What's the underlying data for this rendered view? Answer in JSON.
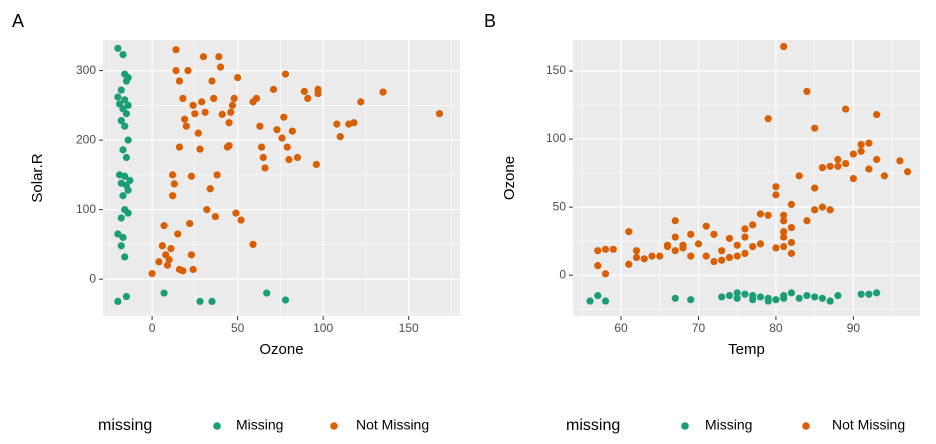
{
  "chart_data": [
    {
      "type": "scatter",
      "label": "A",
      "x_label": "Ozone",
      "y_label": "Solar.R",
      "legend_title": "missing",
      "xlim": [
        -28.7,
        180
      ],
      "ylim": [
        -53,
        344
      ],
      "xticks": [
        0,
        50,
        100,
        150
      ],
      "yticks": [
        0,
        100,
        200,
        300
      ],
      "xminor": [
        -25,
        25,
        75,
        125,
        175
      ],
      "yminor": [
        -50,
        50,
        150,
        250
      ],
      "grid": true,
      "series": [
        {
          "name": "Missing",
          "color": "#1b9e77",
          "x": [
            -20,
            -17,
            -16,
            -14,
            -15,
            -18,
            -20,
            -16,
            -19,
            -14,
            -17,
            -15,
            -18,
            -16,
            -14,
            -17,
            -15,
            -19,
            -16,
            -13,
            -18,
            -15,
            -14,
            -17,
            -16,
            -14,
            -18,
            -20,
            -17,
            -18,
            -16,
            -20,
            -15,
            7,
            28,
            35,
            67,
            78
          ],
          "values": [
            332,
            323,
            295,
            290,
            285,
            272,
            262,
            258,
            252,
            250,
            245,
            238,
            228,
            220,
            200,
            186,
            175,
            150,
            148,
            142,
            138,
            135,
            128,
            120,
            100,
            95,
            88,
            65,
            60,
            48,
            32,
            -32,
            -25,
            -20,
            -32,
            -32,
            -20,
            -30
          ]
        },
        {
          "name": "Not Missing",
          "color": "#d95f02",
          "x": [
            0,
            4,
            6,
            7,
            8,
            9,
            10,
            11,
            12,
            12,
            13,
            14,
            14,
            16,
            15,
            16,
            16,
            18,
            18,
            19,
            20,
            21,
            22,
            23,
            23,
            24,
            24,
            25,
            27,
            28,
            29,
            30,
            31,
            32,
            34,
            35,
            36,
            37,
            38,
            39,
            40,
            41,
            44,
            45,
            45,
            46,
            47,
            48,
            49,
            50,
            52,
            59,
            59,
            61,
            63,
            64,
            65,
            66,
            71,
            73,
            76,
            77,
            78,
            79,
            80,
            82,
            85,
            89,
            91,
            96,
            97,
            97,
            108,
            110,
            115,
            118,
            122,
            135,
            168
          ],
          "values": [
            8,
            25,
            48,
            77,
            35,
            20,
            28,
            44,
            120,
            150,
            137,
            330,
            300,
            285,
            65,
            190,
            14,
            12,
            260,
            230,
            220,
            300,
            80,
            148,
            35,
            250,
            14,
            238,
            210,
            187,
            255,
            320,
            240,
            100,
            130,
            285,
            260,
            90,
            150,
            320,
            305,
            237,
            190,
            192,
            225,
            240,
            250,
            260,
            95,
            290,
            85,
            50,
            255,
            260,
            220,
            190,
            175,
            160,
            273,
            215,
            203,
            233,
            295,
            190,
            172,
            213,
            175,
            270,
            260,
            165,
            273,
            267,
            223,
            205,
            223,
            225,
            255,
            269,
            238
          ]
        }
      ]
    },
    {
      "type": "scatter",
      "label": "B",
      "x_label": "Temp",
      "y_label": "Ozone",
      "legend_title": "missing",
      "xlim": [
        53.8,
        98.6
      ],
      "ylim": [
        -30,
        172.8
      ],
      "xticks": [
        60,
        70,
        80,
        90
      ],
      "yticks": [
        0,
        50,
        100,
        150
      ],
      "xminor": [
        55,
        65,
        75,
        85,
        95
      ],
      "yminor": [
        -25,
        25,
        75,
        125
      ],
      "grid": true,
      "series": [
        {
          "name": "Missing",
          "color": "#1b9e77",
          "x": [
            56,
            57,
            58,
            67,
            69,
            73,
            74,
            75,
            75,
            76,
            77,
            77,
            78,
            79,
            79,
            80,
            81,
            81,
            82,
            83,
            84,
            85,
            86,
            87,
            88,
            91,
            92,
            93
          ],
          "values": [
            -19,
            -15,
            -19,
            -17,
            -18,
            -16,
            -15,
            -13,
            -17,
            -14,
            -15,
            -18,
            -16,
            -17,
            -19,
            -18,
            -15,
            -17,
            -13,
            -17,
            -15,
            -16,
            -17,
            -19,
            -15,
            -14,
            -14,
            -13
          ]
        },
        {
          "name": "Not Missing",
          "color": "#d95f02",
          "x": [
            57,
            57,
            58,
            58,
            59,
            61,
            61,
            62,
            62,
            63,
            64,
            65,
            66,
            66,
            67,
            67,
            67,
            68,
            68,
            69,
            69,
            70,
            71,
            71,
            72,
            72,
            73,
            73,
            74,
            74,
            75,
            75,
            76,
            76,
            76,
            77,
            77,
            78,
            78,
            79,
            79,
            80,
            80,
            80,
            81,
            81,
            81,
            81,
            81,
            81,
            82,
            82,
            82,
            82,
            83,
            84,
            84,
            85,
            85,
            85,
            86,
            86,
            87,
            87,
            88,
            88,
            89,
            89,
            90,
            90,
            91,
            91,
            92,
            92,
            93,
            93,
            94,
            96,
            97
          ],
          "values": [
            7,
            18,
            1,
            19,
            19,
            8,
            32,
            13,
            18,
            12,
            14,
            14,
            22,
            21,
            18,
            40,
            28,
            20,
            22,
            14,
            30,
            23,
            14,
            36,
            10,
            30,
            11,
            18,
            13,
            27,
            14,
            22,
            16,
            34,
            28,
            21,
            37,
            23,
            45,
            44,
            115,
            20,
            65,
            59,
            168,
            40,
            32,
            28,
            21,
            44,
            52,
            35,
            24,
            16,
            73,
            135,
            40,
            48,
            108,
            64,
            79,
            50,
            80,
            48,
            80,
            85,
            122,
            82,
            89,
            71,
            96,
            91,
            97,
            78,
            85,
            118,
            73,
            84,
            76
          ]
        }
      ]
    }
  ]
}
